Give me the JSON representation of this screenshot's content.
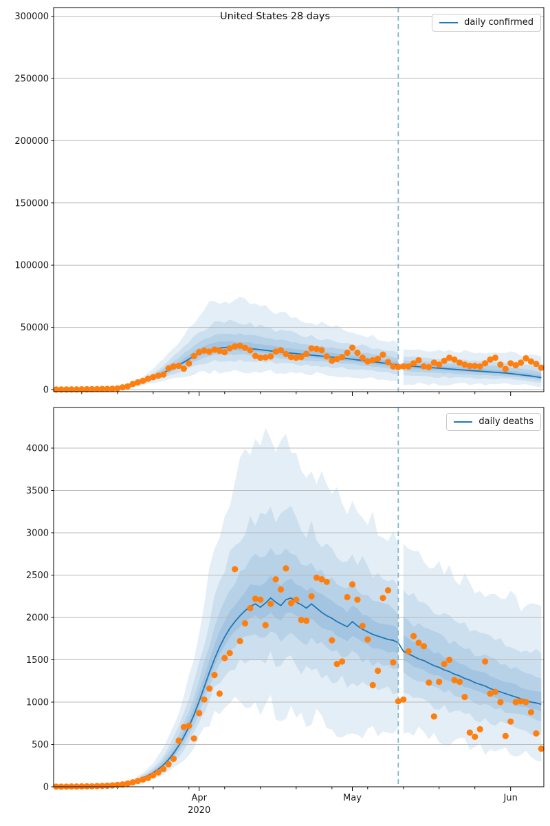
{
  "figure": {
    "title": "United States 28 days",
    "x_start_date": "2020-03-04",
    "days": 96,
    "cutoff_index": 67,
    "cutoff_date": "2020-05-10",
    "x_major_ticks": [
      {
        "index": 28,
        "label": "Apr",
        "sublabel": "2020"
      },
      {
        "index": 58,
        "label": "May",
        "sublabel": ""
      },
      {
        "index": 89,
        "label": "Jun",
        "sublabel": ""
      }
    ],
    "x_minor_tick_indices": [
      5,
      12,
      19,
      26,
      33,
      40,
      47,
      54,
      61,
      68,
      75,
      82
    ],
    "band_levels": [
      1.0,
      0.55,
      0.3,
      0.13
    ],
    "colors": {
      "line": "#1f77b4",
      "points": "#ff7f0e",
      "band": "#1f77b4",
      "dashed": "#84b4d5",
      "grid": "#b9b9b9",
      "spine": "#000000"
    }
  },
  "chart_data": [
    {
      "type": "line+scatter+uncertainty-bands",
      "name": "daily confirmed forecast",
      "legend": "daily confirmed",
      "ylabel_ticks": [
        "0",
        "50000",
        "100000",
        "150000",
        "200000",
        "250000",
        "300000"
      ],
      "yticks": [
        0,
        50000,
        100000,
        150000,
        200000,
        250000,
        300000
      ],
      "ylim": [
        0,
        306900
      ],
      "scatter": [
        80,
        100,
        120,
        150,
        180,
        220,
        270,
        330,
        400,
        480,
        580,
        700,
        900,
        1800,
        2600,
        4500,
        5800,
        7000,
        8800,
        10000,
        11200,
        12100,
        17100,
        18600,
        19100,
        16800,
        21000,
        26900,
        30100,
        31400,
        30400,
        32100,
        31200,
        30100,
        33200,
        34800,
        35200,
        33600,
        31600,
        27100,
        25600,
        25900,
        26600,
        30600,
        31700,
        28600,
        26100,
        25600,
        26100,
        28700,
        33100,
        32600,
        31700,
        26600,
        23100,
        24600,
        26100,
        29600,
        33700,
        29600,
        25600,
        22600,
        23600,
        24700,
        28100,
        22100,
        18600,
        18100,
        18700,
        18600,
        21100,
        23600,
        18700,
        18100,
        21600,
        20100,
        23100,
        25600,
        24100,
        21600,
        20100,
        19100,
        19100,
        18600,
        21100,
        24100,
        25600,
        20100,
        16600,
        21100,
        19600,
        21600,
        25100,
        22600,
        20600,
        17600
      ],
      "median": [
        60,
        75,
        95,
        120,
        150,
        190,
        240,
        300,
        380,
        480,
        600,
        800,
        1100,
        1600,
        2400,
        3500,
        4800,
        6200,
        7800,
        9500,
        11500,
        13500,
        15500,
        17500,
        19800,
        22000,
        24500,
        27000,
        29000,
        30500,
        31800,
        32800,
        33400,
        33800,
        34000,
        33900,
        33700,
        33400,
        33000,
        32500,
        32000,
        31600,
        31100,
        30600,
        30100,
        29700,
        29300,
        28900,
        28500,
        28100,
        27700,
        27300,
        26900,
        26500,
        26100,
        25700,
        25300,
        24900,
        24400,
        23900,
        23400,
        22900,
        22400,
        21900,
        21400,
        20900,
        20400,
        19900,
        19300,
        19000,
        18700,
        18400,
        18100,
        17800,
        17500,
        17200,
        16900,
        16600,
        16300,
        16000,
        15700,
        15400,
        15100,
        14800,
        14500,
        14200,
        13900,
        13600,
        13300,
        12900,
        12400,
        11900,
        11400,
        10900,
        10300,
        9700
      ],
      "band_up": [
        0,
        0,
        0,
        0,
        0,
        0,
        0,
        0,
        0,
        0,
        0,
        0,
        300,
        700,
        1300,
        2200,
        3200,
        4300,
        5600,
        7200,
        9000,
        11000,
        13500,
        16000,
        19000,
        22000,
        25500,
        29000,
        32000,
        34000,
        35500,
        36500,
        37200,
        37500,
        37600,
        37400,
        37000,
        36400,
        35600,
        34800,
        34000,
        33300,
        32500,
        31800,
        31100,
        30400,
        29700,
        29100,
        28400,
        27800,
        27100,
        26500,
        25900,
        25300,
        24700,
        24100,
        23500,
        23000,
        22400,
        21900,
        21400,
        20900,
        20400,
        19900,
        19500,
        19100,
        18700,
        18400,
        13400,
        13500,
        13700,
        13900,
        14000,
        14200,
        14300,
        14500,
        14600,
        14800,
        14900,
        15100,
        15200,
        15400,
        15500,
        15600,
        15800,
        15900,
        16000,
        16200,
        16300,
        16300,
        16400,
        16400,
        16500,
        16500,
        16400,
        16400
      ],
      "band_dn": [
        0,
        0,
        0,
        0,
        0,
        0,
        0,
        0,
        0,
        0,
        0,
        0,
        200,
        400,
        800,
        1300,
        1900,
        2600,
        3400,
        4300,
        5300,
        6400,
        7600,
        8900,
        10300,
        11800,
        13300,
        14800,
        16000,
        17000,
        17800,
        18400,
        18800,
        19000,
        19100,
        19000,
        18800,
        18500,
        18100,
        17800,
        17500,
        17200,
        16900,
        16600,
        16400,
        16100,
        15900,
        15700,
        15500,
        15300,
        15100,
        14900,
        14800,
        14600,
        14500,
        14300,
        14200,
        14000,
        13900,
        13800,
        13700,
        13600,
        13500,
        13500,
        13400,
        13400,
        13300,
        13300,
        14500,
        14300,
        14100,
        13900,
        13700,
        13400,
        13100,
        12800,
        12500,
        12200,
        11900,
        11600,
        11300,
        11000,
        10700,
        10400,
        10100,
        9800,
        9500,
        9200,
        8900,
        8600,
        8300,
        8000,
        7800,
        7600,
        7400,
        7300
      ]
    },
    {
      "type": "line+scatter+uncertainty-bands",
      "name": "daily deaths forecast",
      "legend": "daily deaths",
      "ylabel_ticks": [
        "0",
        "500",
        "1000",
        "1500",
        "2000",
        "2500",
        "3000",
        "3500",
        "4000"
      ],
      "yticks": [
        0,
        500,
        1000,
        1500,
        2000,
        2500,
        3000,
        3500,
        4000
      ],
      "ylim": [
        0,
        4480
      ],
      "scatter": [
        2,
        1,
        2,
        3,
        3,
        4,
        5,
        6,
        8,
        10,
        12,
        16,
        22,
        28,
        38,
        52,
        68,
        85,
        105,
        135,
        170,
        210,
        265,
        330,
        545,
        705,
        720,
        570,
        870,
        1030,
        1160,
        1320,
        1100,
        1520,
        1580,
        2570,
        1720,
        1930,
        2110,
        2220,
        2210,
        1910,
        2160,
        2450,
        2330,
        2580,
        2170,
        2210,
        1970,
        1960,
        2250,
        2470,
        2450,
        2420,
        1730,
        1450,
        1480,
        2240,
        2390,
        2210,
        1900,
        1740,
        1200,
        1370,
        2230,
        2320,
        1470,
        1010,
        1030,
        1600,
        1780,
        1700,
        1660,
        1230,
        830,
        1240,
        1450,
        1500,
        1260,
        1240,
        1060,
        640,
        590,
        680,
        1480,
        1100,
        1120,
        1000,
        600,
        770,
        1000,
        1010,
        1000,
        880,
        630,
        450
      ],
      "median": [
        1,
        1,
        2,
        2,
        3,
        4,
        5,
        7,
        9,
        12,
        15,
        20,
        27,
        36,
        48,
        63,
        82,
        105,
        133,
        167,
        208,
        258,
        320,
        395,
        485,
        590,
        710,
        850,
        1010,
        1180,
        1350,
        1510,
        1650,
        1770,
        1870,
        1950,
        2020,
        2080,
        2130,
        2160,
        2120,
        2170,
        2230,
        2180,
        2140,
        2210,
        2230,
        2180,
        2150,
        2110,
        2160,
        2110,
        2060,
        2020,
        1990,
        1950,
        1920,
        1890,
        1950,
        1900,
        1860,
        1830,
        1800,
        1780,
        1760,
        1740,
        1730,
        1700,
        1600,
        1570,
        1540,
        1510,
        1490,
        1460,
        1430,
        1410,
        1380,
        1360,
        1330,
        1310,
        1280,
        1260,
        1230,
        1210,
        1190,
        1160,
        1140,
        1120,
        1100,
        1080,
        1060,
        1040,
        1020,
        1000,
        990,
        975
      ],
      "band_up": [
        0,
        0,
        0,
        0,
        0,
        0,
        0,
        0,
        0,
        0,
        0,
        0,
        0,
        0,
        15,
        25,
        40,
        60,
        85,
        115,
        155,
        200,
        260,
        330,
        410,
        500,
        610,
        730,
        860,
        990,
        1120,
        1240,
        1350,
        1450,
        1540,
        1620,
        1690,
        1750,
        1800,
        1840,
        1870,
        1890,
        1900,
        1890,
        1870,
        1840,
        1800,
        1760,
        1720,
        1680,
        1640,
        1600,
        1560,
        1530,
        1500,
        1470,
        1440,
        1410,
        1490,
        1450,
        1420,
        1390,
        1360,
        1330,
        1300,
        1280,
        1260,
        1240,
        1300,
        1290,
        1280,
        1270,
        1260,
        1250,
        1240,
        1230,
        1220,
        1210,
        1200,
        1190,
        1180,
        1170,
        1160,
        1160,
        1150,
        1150,
        1140,
        1140,
        1130,
        1130,
        1120,
        1120,
        1110,
        1110,
        1100,
        1100
      ],
      "band_dn": [
        0,
        0,
        0,
        0,
        0,
        0,
        0,
        0,
        0,
        0,
        0,
        0,
        0,
        0,
        8,
        14,
        22,
        33,
        47,
        64,
        86,
        112,
        143,
        180,
        222,
        270,
        325,
        385,
        450,
        520,
        590,
        660,
        730,
        800,
        870,
        930,
        990,
        1050,
        1100,
        1150,
        1190,
        1230,
        1260,
        1290,
        1310,
        1330,
        1340,
        1350,
        1350,
        1340,
        1330,
        1320,
        1300,
        1280,
        1260,
        1240,
        1220,
        1200,
        1230,
        1210,
        1190,
        1170,
        1150,
        1130,
        1110,
        1090,
        1080,
        1060,
        900,
        890,
        880,
        870,
        860,
        850,
        840,
        830,
        820,
        810,
        800,
        790,
        780,
        770,
        760,
        750,
        740,
        730,
        720,
        710,
        700,
        690,
        680,
        670,
        660,
        650,
        640,
        630
      ]
    }
  ]
}
